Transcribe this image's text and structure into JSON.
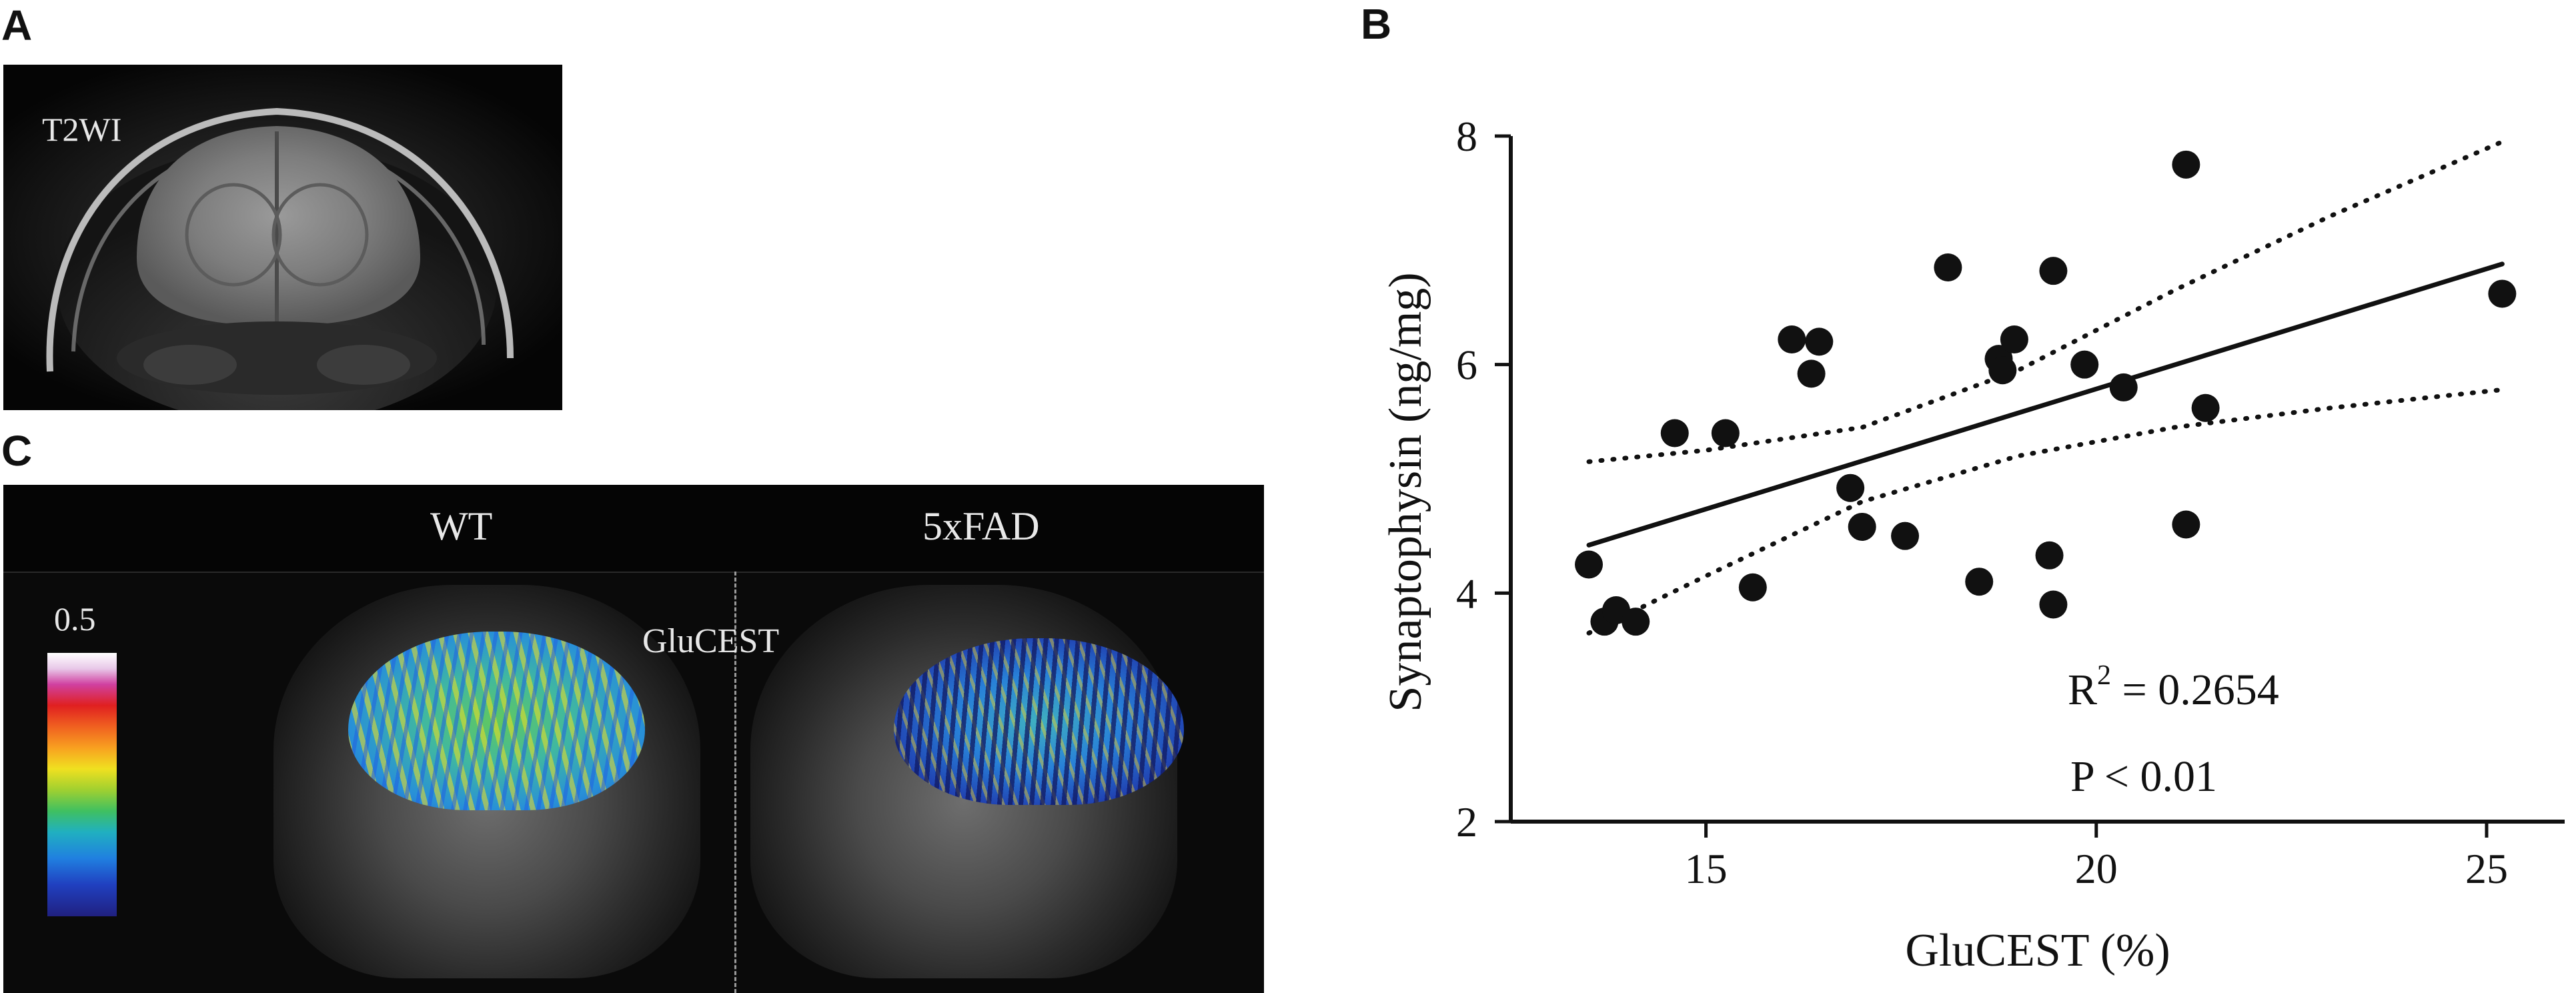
{
  "panels": {
    "a": {
      "letter": "A",
      "label": "T2WI"
    },
    "b": {
      "letter": "B"
    },
    "c": {
      "letter": "C",
      "wt_label": "WT",
      "fad_label": "5xFAD",
      "modality_label": "GluCEST",
      "colorbar_max": "0.5"
    }
  },
  "chart_data": {
    "type": "scatter",
    "xlabel": "GluCEST (%)",
    "ylabel": "Synaptophysin  (ng/mg)",
    "xlim": [
      12.5,
      26
    ],
    "ylim": [
      2,
      8
    ],
    "x_ticks": [
      "15",
      "20",
      "25"
    ],
    "y_ticks": [
      "2",
      "4",
      "6",
      "8"
    ],
    "grid": false,
    "points": [
      {
        "x": 13.5,
        "y": 4.25
      },
      {
        "x": 13.7,
        "y": 3.75
      },
      {
        "x": 13.85,
        "y": 3.85
      },
      {
        "x": 14.1,
        "y": 3.75
      },
      {
        "x": 14.6,
        "y": 5.4
      },
      {
        "x": 15.25,
        "y": 5.4
      },
      {
        "x": 15.6,
        "y": 4.05
      },
      {
        "x": 16.1,
        "y": 6.22
      },
      {
        "x": 16.35,
        "y": 5.92
      },
      {
        "x": 16.45,
        "y": 6.2
      },
      {
        "x": 16.85,
        "y": 4.92
      },
      {
        "x": 17.0,
        "y": 4.58
      },
      {
        "x": 17.55,
        "y": 4.5
      },
      {
        "x": 18.1,
        "y": 6.85
      },
      {
        "x": 18.5,
        "y": 4.1
      },
      {
        "x": 18.75,
        "y": 6.05
      },
      {
        "x": 18.8,
        "y": 5.95
      },
      {
        "x": 18.95,
        "y": 6.22
      },
      {
        "x": 19.4,
        "y": 4.33
      },
      {
        "x": 19.45,
        "y": 3.9
      },
      {
        "x": 19.45,
        "y": 6.82
      },
      {
        "x": 19.85,
        "y": 6.0
      },
      {
        "x": 20.35,
        "y": 5.8
      },
      {
        "x": 21.15,
        "y": 4.6
      },
      {
        "x": 21.15,
        "y": 7.75
      },
      {
        "x": 21.4,
        "y": 5.62
      },
      {
        "x": 25.2,
        "y": 6.62
      }
    ],
    "regression": {
      "x": [
        13.5,
        25.2
      ],
      "y": [
        4.42,
        6.88
      ]
    },
    "ci_upper": {
      "x": [
        13.5,
        15,
        17,
        19,
        21,
        23,
        25.2
      ],
      "y": [
        5.15,
        5.25,
        5.45,
        5.95,
        6.65,
        7.3,
        7.95
      ]
    },
    "ci_lower": {
      "x": [
        13.5,
        15,
        17,
        19,
        21,
        23,
        25.2
      ],
      "y": [
        3.65,
        4.15,
        4.8,
        5.2,
        5.45,
        5.62,
        5.78
      ]
    },
    "annotations": {
      "r2_prefix": "R",
      "r2_sup": "2",
      "r2_value": " = 0.2654",
      "p_value": "P < 0.01"
    }
  }
}
